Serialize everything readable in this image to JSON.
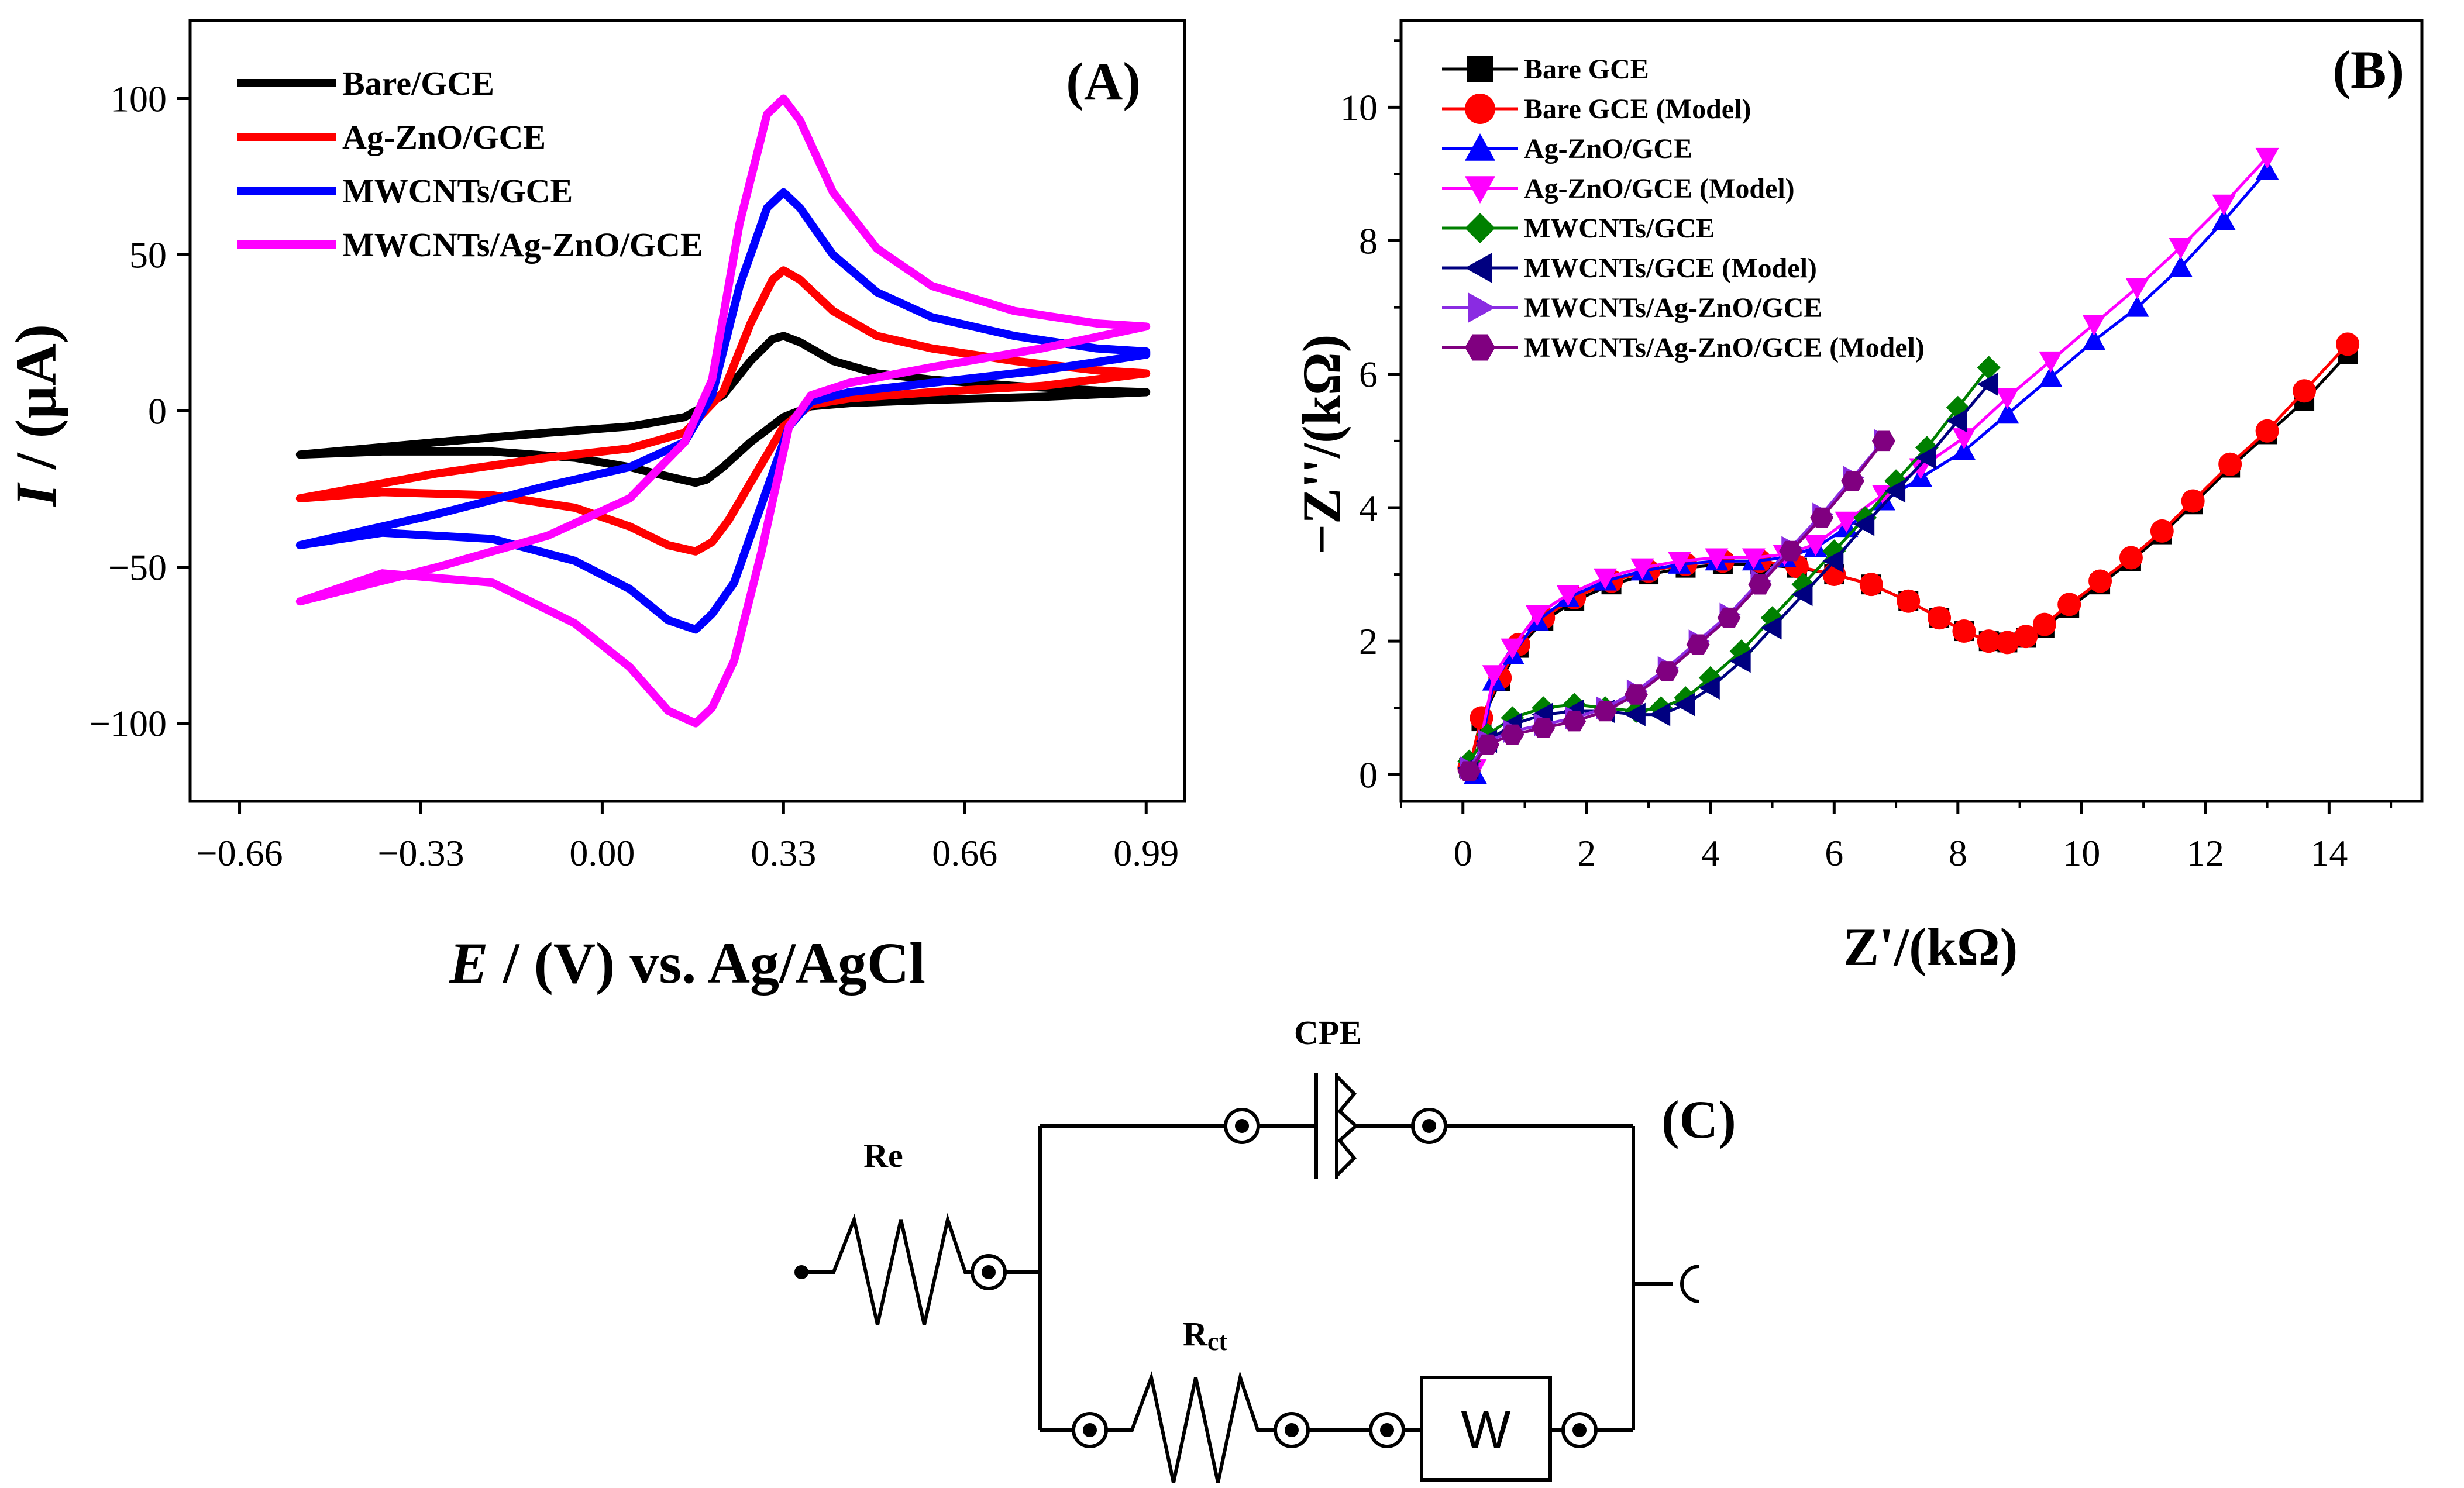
{
  "chart_data": [
    {
      "id": "A",
      "type": "line",
      "panel_label": "(A)",
      "xlabel_italic": "E",
      "xlabel_rest": " / (V) vs. Ag/AgCl",
      "ylabel_italic": "I",
      "ylabel_rest": " / (μA)",
      "xlim": [
        -0.75,
        1.06
      ],
      "ylim": [
        -125,
        125
      ],
      "xticks": [
        -0.66,
        -0.33,
        0.0,
        0.33,
        0.66,
        0.99
      ],
      "xtick_labels": [
        "−0.66",
        "−0.33",
        "0.00",
        "0.33",
        "0.66",
        "0.99"
      ],
      "yticks": [
        -100,
        -50,
        0,
        50,
        100
      ],
      "ytick_labels": [
        "−100",
        "−50",
        "0",
        "50",
        "100"
      ],
      "legend_position": "top-left",
      "series": [
        {
          "name": "Bare/GCE",
          "color": "#000000",
          "ox_x": [
            -0.55,
            -0.3,
            -0.1,
            0.05,
            0.15,
            0.22,
            0.27,
            0.31,
            0.33,
            0.36,
            0.42,
            0.5,
            0.6,
            0.75,
            0.9,
            0.99
          ],
          "ox_y": [
            -14,
            -10,
            -7,
            -5,
            -2,
            5,
            16,
            23,
            24,
            22,
            16,
            12,
            10,
            8,
            6.5,
            6
          ],
          "red_x": [
            0.99,
            0.8,
            0.6,
            0.45,
            0.38,
            0.33,
            0.27,
            0.22,
            0.19,
            0.17,
            0.12,
            0.05,
            -0.05,
            -0.2,
            -0.4,
            -0.55
          ],
          "red_y": [
            6,
            4.5,
            3.5,
            2.5,
            1.5,
            -2,
            -10,
            -18,
            -22,
            -23,
            -21,
            -18,
            -15,
            -13,
            -13,
            -14
          ]
        },
        {
          "name": "Ag-ZnO/GCE",
          "color": "#ff0000",
          "ox_x": [
            -0.55,
            -0.3,
            -0.1,
            0.05,
            0.15,
            0.22,
            0.27,
            0.31,
            0.33,
            0.36,
            0.42,
            0.5,
            0.6,
            0.75,
            0.9,
            0.99
          ],
          "ox_y": [
            -28,
            -20,
            -15,
            -12,
            -7,
            6,
            28,
            42,
            45,
            42,
            32,
            24,
            20,
            16,
            13,
            12
          ],
          "red_x": [
            0.99,
            0.8,
            0.6,
            0.45,
            0.38,
            0.33,
            0.28,
            0.23,
            0.2,
            0.17,
            0.12,
            0.05,
            -0.05,
            -0.2,
            -0.4,
            -0.55
          ],
          "red_y": [
            12,
            8,
            6,
            4,
            2,
            -5,
            -20,
            -35,
            -42,
            -45,
            -43,
            -37,
            -31,
            -27,
            -26,
            -28
          ]
        },
        {
          "name": "MWCNTs/GCE",
          "color": "#0000ff",
          "ox_x": [
            -0.55,
            -0.3,
            -0.1,
            0.05,
            0.15,
            0.2,
            0.25,
            0.3,
            0.33,
            0.36,
            0.42,
            0.5,
            0.6,
            0.75,
            0.9,
            0.99
          ],
          "ox_y": [
            -43,
            -33,
            -24,
            -18,
            -10,
            5,
            40,
            65,
            70,
            65,
            50,
            38,
            30,
            24,
            20,
            19
          ],
          "red_x": [
            0.99,
            0.8,
            0.6,
            0.45,
            0.38,
            0.34,
            0.29,
            0.24,
            0.2,
            0.17,
            0.12,
            0.05,
            -0.05,
            -0.2,
            -0.4,
            -0.55
          ],
          "red_y": [
            18,
            13,
            9,
            6,
            3,
            -5,
            -30,
            -55,
            -65,
            -70,
            -67,
            -57,
            -48,
            -41,
            -39,
            -43
          ]
        },
        {
          "name": "MWCNTs/Ag-ZnO/GCE",
          "color": "#ff00ff",
          "ox_x": [
            -0.55,
            -0.3,
            -0.1,
            0.05,
            0.15,
            0.2,
            0.25,
            0.3,
            0.33,
            0.36,
            0.42,
            0.5,
            0.6,
            0.75,
            0.9,
            0.99
          ],
          "ox_y": [
            -61,
            -50,
            -40,
            -28,
            -10,
            10,
            60,
            95,
            100,
            93,
            70,
            52,
            40,
            32,
            28,
            27
          ],
          "red_x": [
            0.99,
            0.8,
            0.6,
            0.45,
            0.38,
            0.34,
            0.29,
            0.24,
            0.2,
            0.17,
            0.12,
            0.05,
            -0.05,
            -0.2,
            -0.4,
            -0.55
          ],
          "red_y": [
            27,
            20,
            14,
            9,
            5,
            -5,
            -45,
            -80,
            -95,
            -100,
            -96,
            -82,
            -68,
            -55,
            -52,
            -61
          ]
        }
      ]
    },
    {
      "id": "B",
      "type": "scatter",
      "panel_label": "(B)",
      "xlabel": "Z'/(kΩ)",
      "ylabel": "−Z''/(kΩ)",
      "xlim": [
        -1.0,
        15.5
      ],
      "ylim": [
        -0.4,
        11.3
      ],
      "xticks": [
        0,
        2,
        4,
        6,
        8,
        10,
        12,
        14
      ],
      "xtick_labels": [
        "0",
        "2",
        "4",
        "6",
        "8",
        "10",
        "12",
        "14"
      ],
      "yticks": [
        0,
        2,
        4,
        6,
        8,
        10
      ],
      "ytick_labels": [
        "0",
        "2",
        "4",
        "6",
        "8",
        "10"
      ],
      "legend_position": "top-left",
      "series": [
        {
          "name": "Bare GCE",
          "color": "#000000",
          "marker": "square",
          "x": [
            0.1,
            0.3,
            0.6,
            0.9,
            1.3,
            1.8,
            2.4,
            3.0,
            3.6,
            4.2,
            4.8,
            5.4,
            6.0,
            6.6,
            7.2,
            7.7,
            8.1,
            8.5,
            8.8,
            9.1,
            9.4,
            9.8,
            10.3,
            10.8,
            11.3,
            11.8,
            12.4,
            13.0,
            13.6,
            14.3
          ],
          "y": [
            0.1,
            0.8,
            1.4,
            1.9,
            2.3,
            2.6,
            2.85,
            3.0,
            3.1,
            3.15,
            3.15,
            3.1,
            3.0,
            2.85,
            2.6,
            2.35,
            2.15,
            2.0,
            1.98,
            2.05,
            2.2,
            2.5,
            2.85,
            3.2,
            3.6,
            4.05,
            4.6,
            5.1,
            5.6,
            6.3
          ]
        },
        {
          "name": "Bare GCE (Model)",
          "color": "#ff0000",
          "marker": "circle",
          "x": [
            0.1,
            0.3,
            0.6,
            0.9,
            1.3,
            1.8,
            2.4,
            3.0,
            3.6,
            4.2,
            4.8,
            5.4,
            6.0,
            6.6,
            7.2,
            7.7,
            8.1,
            8.5,
            8.8,
            9.1,
            9.4,
            9.8,
            10.3,
            10.8,
            11.3,
            11.8,
            12.4,
            13.0,
            13.6,
            14.3
          ],
          "y": [
            0.1,
            0.85,
            1.45,
            1.95,
            2.35,
            2.65,
            2.9,
            3.05,
            3.15,
            3.2,
            3.2,
            3.12,
            3.0,
            2.85,
            2.6,
            2.35,
            2.15,
            2.0,
            1.98,
            2.07,
            2.25,
            2.55,
            2.9,
            3.25,
            3.65,
            4.1,
            4.65,
            5.15,
            5.75,
            6.45
          ]
        },
        {
          "name": "Ag-ZnO/GCE",
          "color": "#0000ff",
          "marker": "triangle-up",
          "x": [
            0.2,
            0.5,
            0.8,
            1.2,
            1.7,
            2.3,
            2.9,
            3.5,
            4.1,
            4.7,
            5.2,
            5.7,
            6.2,
            6.8,
            7.4,
            8.1,
            8.8,
            9.5,
            10.2,
            10.9,
            11.6,
            12.3,
            13.0
          ],
          "y": [
            0.0,
            1.4,
            1.8,
            2.3,
            2.65,
            2.9,
            3.05,
            3.15,
            3.2,
            3.2,
            3.25,
            3.4,
            3.7,
            4.1,
            4.45,
            4.85,
            5.4,
            5.95,
            6.5,
            7.0,
            7.6,
            8.3,
            9.05
          ]
        },
        {
          "name": "Ag-ZnO/GCE (Model)",
          "color": "#ff00ff",
          "marker": "triangle-down",
          "x": [
            0.2,
            0.5,
            0.8,
            1.2,
            1.7,
            2.3,
            2.9,
            3.5,
            4.1,
            4.7,
            5.2,
            5.7,
            6.2,
            6.8,
            7.4,
            8.1,
            8.8,
            9.5,
            10.2,
            10.9,
            11.6,
            12.3,
            13.0
          ],
          "y": [
            0.1,
            1.5,
            1.9,
            2.4,
            2.7,
            2.95,
            3.1,
            3.2,
            3.25,
            3.25,
            3.3,
            3.45,
            3.8,
            4.2,
            4.6,
            5.05,
            5.65,
            6.2,
            6.75,
            7.3,
            7.9,
            8.55,
            9.25
          ]
        },
        {
          "name": "MWCNTs/GCE",
          "color": "#008000",
          "marker": "diamond",
          "x": [
            0.1,
            0.4,
            0.8,
            1.3,
            1.8,
            2.3,
            2.8,
            3.2,
            3.6,
            4.0,
            4.5,
            5.0,
            5.5,
            6.0,
            6.5,
            7.0,
            7.5,
            8.0,
            8.5
          ],
          "y": [
            0.2,
            0.6,
            0.85,
            1.0,
            1.05,
            1.0,
            0.95,
            1.0,
            1.15,
            1.45,
            1.85,
            2.35,
            2.85,
            3.35,
            3.85,
            4.4,
            4.9,
            5.5,
            6.1
          ]
        },
        {
          "name": "MWCNTs/GCE (Model)",
          "color": "#000080",
          "marker": "triangle-left",
          "x": [
            0.1,
            0.4,
            0.8,
            1.3,
            1.8,
            2.3,
            2.8,
            3.2,
            3.6,
            4.0,
            4.5,
            5.0,
            5.5,
            6.0,
            6.5,
            7.0,
            7.5,
            8.0,
            8.5
          ],
          "y": [
            0.1,
            0.5,
            0.75,
            0.9,
            0.95,
            0.95,
            0.9,
            0.9,
            1.05,
            1.3,
            1.7,
            2.2,
            2.7,
            3.2,
            3.75,
            4.25,
            4.75,
            5.3,
            5.85
          ]
        },
        {
          "name": "MWCNTs/Ag-ZnO/GCE",
          "color": "#8a2be2",
          "marker": "triangle-right",
          "x": [
            0.1,
            0.4,
            0.8,
            1.3,
            1.8,
            2.3,
            2.8,
            3.3,
            3.8,
            4.3,
            4.8,
            5.3,
            5.8,
            6.3,
            6.8
          ],
          "y": [
            0.1,
            0.5,
            0.65,
            0.75,
            0.85,
            1.0,
            1.25,
            1.6,
            2.0,
            2.4,
            2.9,
            3.4,
            3.9,
            4.45,
            5.0
          ]
        },
        {
          "name": "MWCNTs/Ag-ZnO/GCE (Model)",
          "color": "#800080",
          "marker": "hexagon",
          "x": [
            0.1,
            0.4,
            0.8,
            1.3,
            1.8,
            2.3,
            2.8,
            3.3,
            3.8,
            4.3,
            4.8,
            5.3,
            5.8,
            6.3,
            6.8
          ],
          "y": [
            0.05,
            0.45,
            0.6,
            0.7,
            0.8,
            0.95,
            1.2,
            1.55,
            1.95,
            2.35,
            2.85,
            3.35,
            3.85,
            4.4,
            5.0
          ]
        }
      ]
    }
  ],
  "circuit": {
    "panel_label": "(C)",
    "re_label": "Re",
    "cpe_label": "CPE",
    "rct_label_main": "R",
    "rct_label_sub": "ct",
    "w_label": "W"
  }
}
